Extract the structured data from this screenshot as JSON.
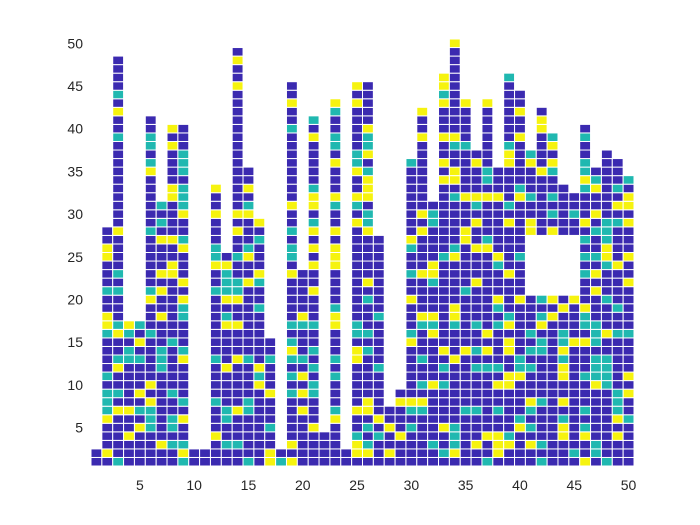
{
  "chart_data": {
    "type": "heatmap",
    "title": "",
    "xlabel": "",
    "ylabel": "",
    "xlim": [
      0.5,
      50.5
    ],
    "ylim": [
      0.5,
      50.5
    ],
    "x_ticks": [
      5,
      10,
      15,
      20,
      25,
      30,
      35,
      40,
      45,
      50
    ],
    "y_ticks": [
      5,
      10,
      15,
      20,
      25,
      30,
      35,
      40,
      45,
      50
    ],
    "x_tick_labels": [
      "5",
      "10",
      "15",
      "20",
      "25",
      "30",
      "35",
      "40",
      "45",
      "50"
    ],
    "y_tick_labels": [
      "5",
      "10",
      "15",
      "20",
      "25",
      "30",
      "35",
      "40",
      "45",
      "50"
    ],
    "grid": false,
    "legend": "none",
    "colors": {
      "purple": "#3b2ab0",
      "teal": "#20b8b0",
      "yellow": "#f6f30f",
      "background": "#ffffff",
      "cell_border": "#ffffff"
    },
    "column_heights": [
      2,
      28,
      48,
      17,
      17,
      41,
      31,
      40,
      40,
      2,
      2,
      33,
      25,
      49,
      35,
      29,
      15,
      2,
      45,
      23,
      41,
      4,
      43,
      2,
      45,
      45,
      27,
      7,
      9,
      36,
      42,
      31,
      46,
      50,
      43,
      37,
      43,
      35,
      46,
      44,
      37,
      42,
      39,
      33,
      32,
      40,
      35,
      37,
      36,
      34
    ],
    "gap_region": {
      "columns": [
        41,
        45
      ],
      "rows": [
        21,
        27
      ]
    },
    "value_levels": [
      "purple",
      "teal",
      "yellow"
    ],
    "dominant_value": "purple"
  }
}
